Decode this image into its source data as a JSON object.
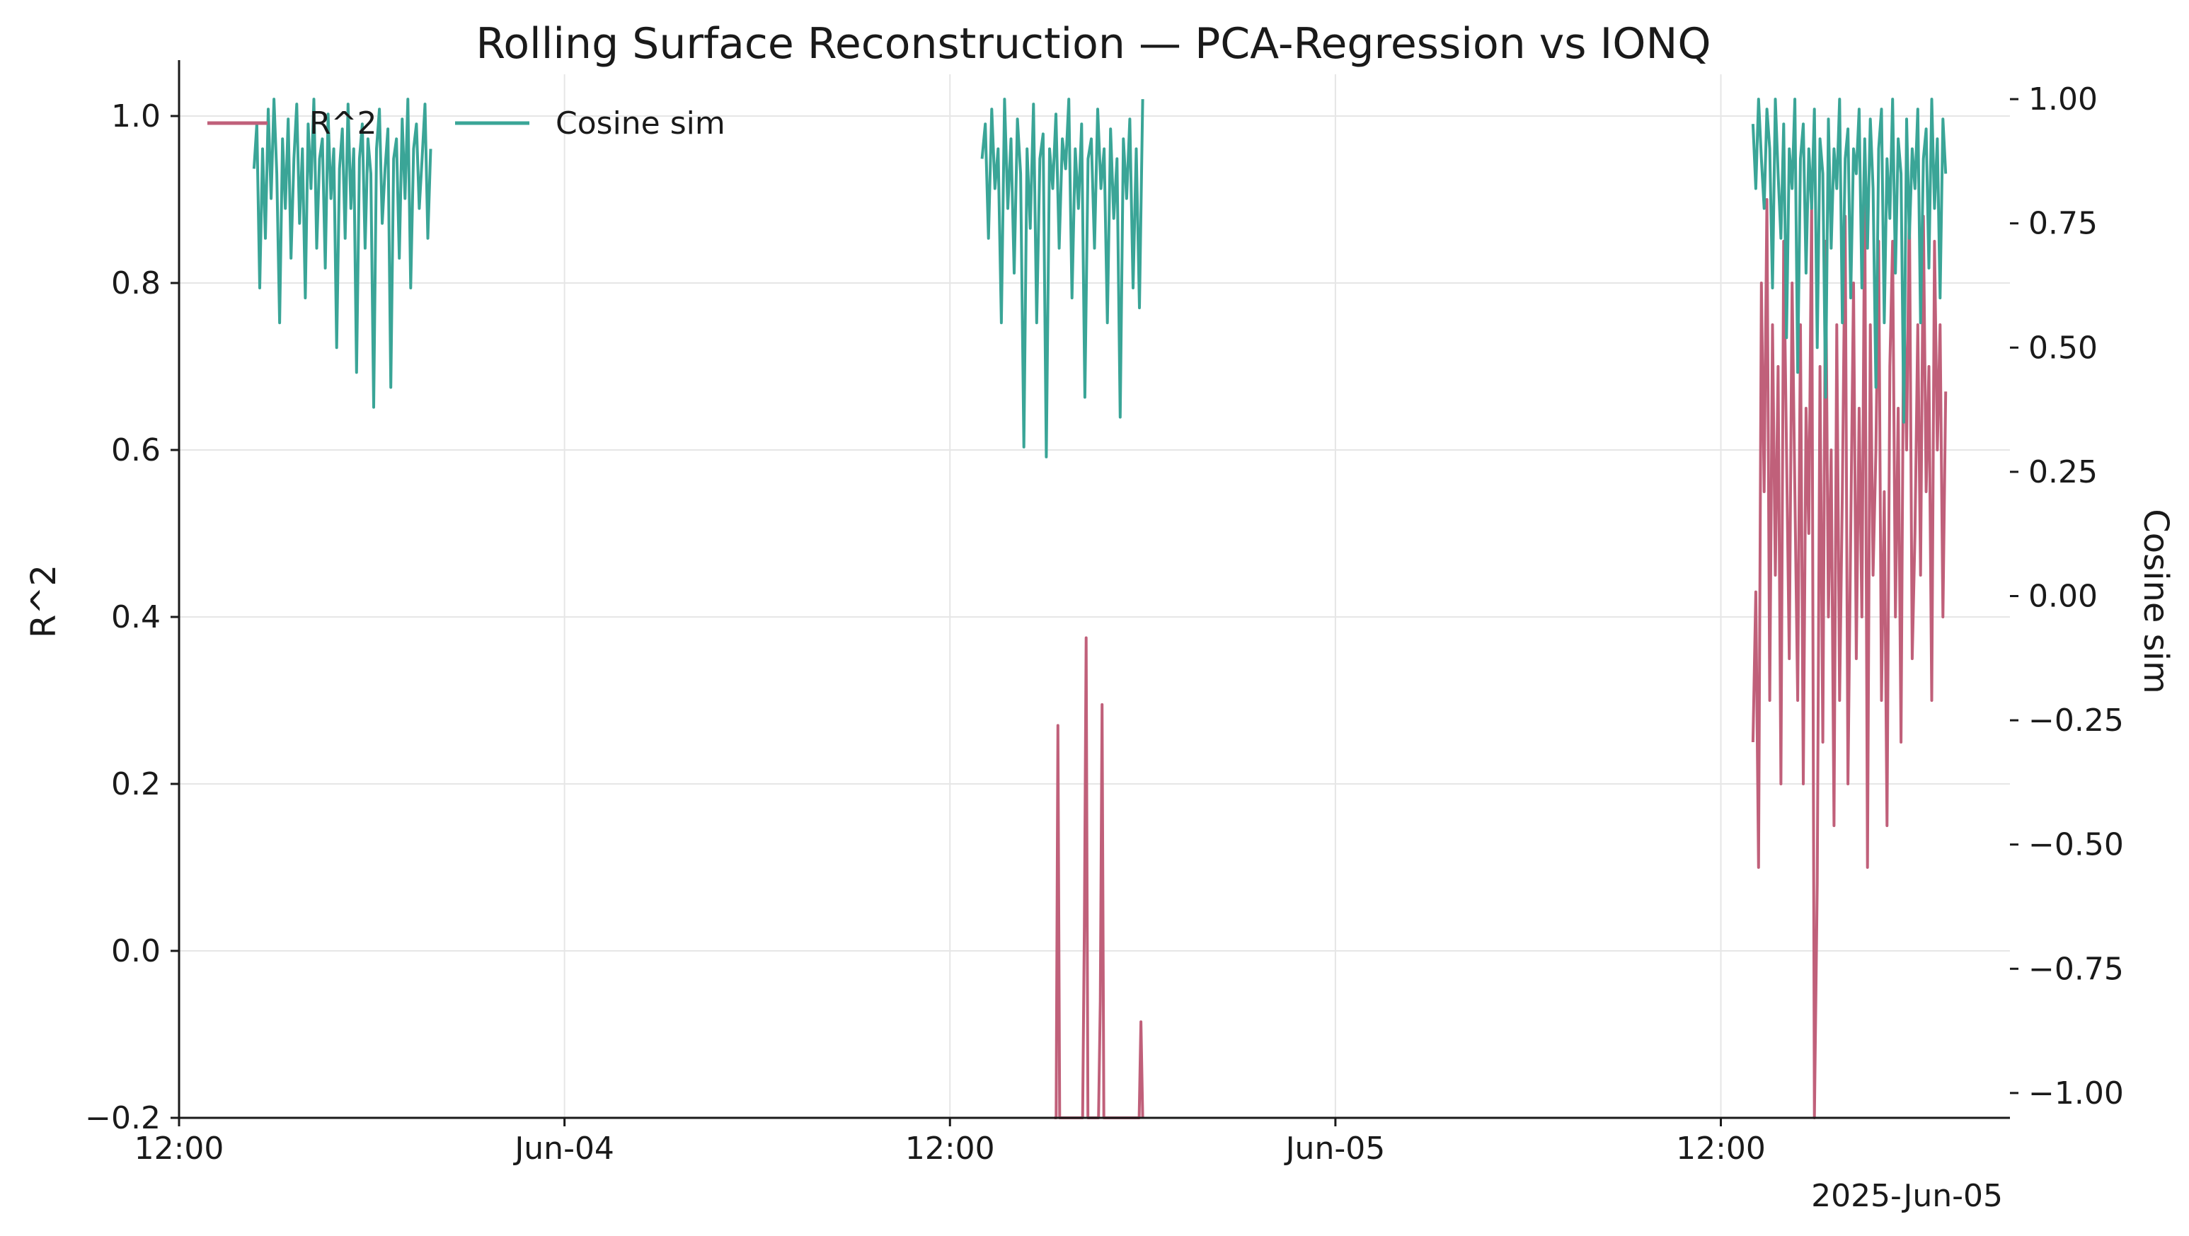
{
  "chart_data": {
    "type": "line",
    "title": "Rolling Surface Reconstruction — PCA-Regression vs IONQ",
    "xlabel": "",
    "ylabel_left": "R^2",
    "ylabel_right": "Cosine sim",
    "x_range": [
      "2025-06-03 12:00",
      "2025-06-05 21:00"
    ],
    "x_ticks": [
      {
        "t": "2025-06-03 12:00",
        "label": "12:00"
      },
      {
        "t": "2025-06-04 00:00",
        "label": "Jun-04"
      },
      {
        "t": "2025-06-04 12:00",
        "label": "12:00"
      },
      {
        "t": "2025-06-05 00:00",
        "label": "Jun-05"
      },
      {
        "t": "2025-06-05 12:00",
        "label": "12:00"
      }
    ],
    "x_offset_label": "2025-Jun-05",
    "ylim_left": [
      -0.2,
      1.05
    ],
    "yticks_left": [
      -0.2,
      0.0,
      0.2,
      0.4,
      0.6,
      0.8,
      1.0
    ],
    "ytick_labels_left": [
      "−0.2",
      "0.0",
      "0.2",
      "0.4",
      "0.6",
      "0.8",
      "1.0"
    ],
    "ylim_right": [
      -1.05,
      1.05
    ],
    "yticks_right": [
      -1.0,
      -0.75,
      -0.5,
      -0.25,
      0.0,
      0.25,
      0.5,
      0.75,
      1.0
    ],
    "ytick_labels_right": [
      "−1.00",
      "−0.75",
      "−0.50",
      "−0.25",
      "0.00",
      "0.25",
      "0.50",
      "0.75",
      "1.00"
    ],
    "grid": true,
    "legend_position": "top-left",
    "colors": {
      "r2": "#c0607a",
      "cosine": "#3aa597",
      "grid": "#e6e6e6",
      "axis": "#1a1a1a"
    },
    "series": [
      {
        "name": "R^2",
        "axis": "left",
        "segments": [
          {
            "start": "2025-06-04 15:15",
            "end": "2025-06-04 18:00",
            "values": [
              -0.2,
              -0.2,
              0.27,
              -0.2,
              -0.2,
              -0.2,
              -0.2,
              -0.2,
              -0.2,
              -0.2,
              -0.2,
              -0.2,
              -0.2,
              -0.2,
              -0.2,
              -0.2,
              -0.2,
              0.03,
              0.375,
              -0.2,
              -0.2,
              -0.2,
              -0.2,
              -0.2,
              -0.2,
              -0.2,
              -0.06,
              0.295,
              -0.2,
              -0.2,
              -0.2,
              -0.2,
              -0.2,
              -0.2,
              -0.2,
              -0.2,
              -0.2,
              -0.2,
              -0.2,
              -0.2,
              -0.2,
              -0.2,
              -0.2,
              -0.2,
              -0.2,
              -0.2,
              -0.2,
              -0.2,
              -0.2,
              -0.085,
              -0.2
            ]
          },
          {
            "start": "2025-06-05 13:00",
            "end": "2025-06-05 19:00",
            "values": [
              0.25,
              0.43,
              0.1,
              0.8,
              0.55,
              0.9,
              0.3,
              0.75,
              0.45,
              0.7,
              0.2,
              0.85,
              0.6,
              0.35,
              0.8,
              0.55,
              0.3,
              0.75,
              0.2,
              0.65,
              0.5,
              0.9,
              -0.2,
              0.08,
              0.7,
              0.25,
              0.85,
              0.4,
              0.6,
              0.15,
              0.75,
              0.3,
              0.55,
              0.88,
              0.2,
              0.5,
              0.8,
              0.35,
              0.65,
              0.4,
              0.92,
              0.1,
              0.75,
              0.45,
              0.6,
              0.85,
              0.3,
              0.55,
              0.15,
              0.7,
              0.85,
              0.4,
              0.65,
              0.25,
              0.8,
              0.6,
              0.9,
              0.35,
              0.5,
              0.75,
              0.45,
              0.88,
              0.55,
              0.7,
              0.3,
              0.85,
              0.6,
              0.75,
              0.4,
              0.67
            ]
          }
        ]
      },
      {
        "name": "Cosine sim",
        "axis": "right",
        "segments": [
          {
            "start": "2025-06-03 14:20",
            "end": "2025-06-03 19:50",
            "values": [
              0.86,
              0.95,
              0.62,
              0.9,
              0.72,
              0.98,
              0.8,
              1.0,
              0.85,
              0.55,
              0.92,
              0.78,
              0.96,
              0.68,
              0.88,
              0.99,
              0.75,
              0.9,
              0.6,
              0.95,
              0.82,
              1.0,
              0.7,
              0.88,
              0.92,
              0.66,
              0.97,
              0.8,
              0.9,
              0.5,
              0.86,
              0.94,
              0.72,
              0.99,
              0.78,
              0.9,
              0.45,
              0.88,
              0.95,
              0.7,
              0.92,
              0.85,
              0.38,
              0.9,
              0.98,
              0.75,
              0.86,
              0.94,
              0.42,
              0.88,
              0.92,
              0.68,
              0.96,
              0.8,
              1.0,
              0.62,
              0.9,
              0.95,
              0.78,
              0.88,
              0.99,
              0.72,
              0.9
            ]
          },
          {
            "start": "2025-06-04 13:00",
            "end": "2025-06-04 18:00",
            "values": [
              0.88,
              0.95,
              0.72,
              0.98,
              0.82,
              0.9,
              0.55,
              1.0,
              0.78,
              0.92,
              0.65,
              0.96,
              0.85,
              0.3,
              0.9,
              0.74,
              0.99,
              0.55,
              0.88,
              0.93,
              0.28,
              0.9,
              0.82,
              0.97,
              0.7,
              0.92,
              0.86,
              1.0,
              0.6,
              0.9,
              0.78,
              0.95,
              0.4,
              0.88,
              0.92,
              0.7,
              0.98,
              0.82,
              0.9,
              0.55,
              0.94,
              0.76,
              0.88,
              0.36,
              0.92,
              0.8,
              0.96,
              0.62,
              0.9,
              0.58,
              1.0
            ]
          },
          {
            "start": "2025-06-05 13:00",
            "end": "2025-06-05 19:00",
            "values": [
              0.95,
              0.82,
              1.0,
              0.88,
              0.78,
              0.98,
              0.9,
              0.62,
              1.0,
              0.85,
              0.72,
              0.95,
              0.52,
              0.9,
              0.82,
              1.0,
              0.45,
              0.88,
              0.95,
              0.65,
              0.9,
              0.78,
              0.98,
              0.5,
              0.92,
              0.85,
              0.4,
              0.96,
              0.7,
              0.9,
              0.82,
              1.0,
              0.55,
              0.88,
              0.94,
              0.6,
              0.9,
              0.85,
              0.98,
              0.62,
              0.92,
              0.7,
              0.96,
              0.82,
              0.42,
              0.9,
              0.98,
              0.55,
              0.88,
              0.76,
              1.0,
              0.65,
              0.92,
              0.85,
              0.35,
              0.96,
              0.72,
              0.9,
              0.82,
              0.98,
              0.55,
              0.88,
              0.94,
              0.66,
              1.0,
              0.78,
              0.92,
              0.6,
              0.96,
              0.85
            ]
          }
        ]
      }
    ]
  }
}
